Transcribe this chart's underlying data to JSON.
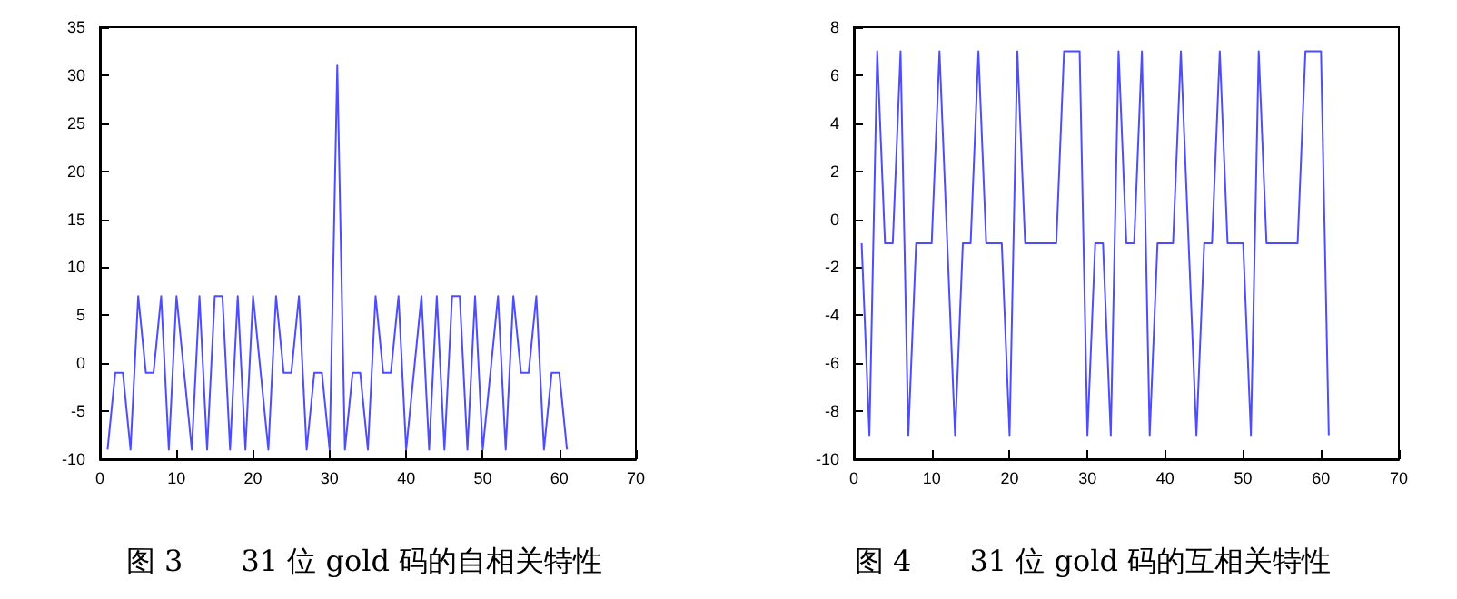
{
  "chart_data": [
    {
      "type": "line",
      "title": "图 3　　31 位 gold 码的自相关特性",
      "x": [
        1,
        2,
        3,
        4,
        5,
        6,
        7,
        8,
        9,
        10,
        11,
        12,
        13,
        14,
        15,
        16,
        17,
        18,
        19,
        20,
        21,
        22,
        23,
        24,
        25,
        26,
        27,
        28,
        29,
        30,
        31,
        32,
        33,
        34,
        35,
        36,
        37,
        38,
        39,
        40,
        41,
        42,
        43,
        44,
        45,
        46,
        47,
        48,
        49,
        50,
        51,
        52,
        53,
        54,
        55,
        56,
        57,
        58,
        59,
        60,
        61
      ],
      "series": [
        {
          "color": "#4d4dff",
          "values": [
            -9,
            -1,
            -1,
            -9,
            7,
            -1,
            -1,
            7,
            -9,
            7,
            -1,
            -9,
            7,
            -9,
            7,
            7,
            -9,
            7,
            -9,
            7,
            -1,
            -9,
            7,
            -1,
            -1,
            7,
            -9,
            -1,
            -1,
            -9,
            31,
            -9,
            -1,
            -1,
            -9,
            7,
            -1,
            -1,
            7,
            -9,
            -1,
            7,
            -9,
            7,
            -9,
            7,
            7,
            -9,
            7,
            -9,
            -1,
            7,
            -9,
            7,
            -1,
            -1,
            7,
            -9,
            -1,
            -1,
            -9
          ]
        }
      ],
      "xlim": [
        0,
        70
      ],
      "xticks": [
        0,
        10,
        20,
        30,
        40,
        50,
        60,
        70
      ],
      "ylim": [
        -10,
        35
      ],
      "yticks": [
        -10,
        -5,
        0,
        5,
        10,
        15,
        20,
        25,
        30,
        35
      ],
      "grid": false,
      "marker": "none",
      "line_style": "solid"
    },
    {
      "type": "line",
      "title": "图 4　　31 位 gold 码的互相关特性",
      "x": [
        1,
        2,
        3,
        4,
        5,
        6,
        7,
        8,
        9,
        10,
        11,
        12,
        13,
        14,
        15,
        16,
        17,
        18,
        19,
        20,
        21,
        22,
        23,
        24,
        25,
        26,
        27,
        28,
        29,
        30,
        31,
        32,
        33,
        34,
        35,
        36,
        37,
        38,
        39,
        40,
        41,
        42,
        43,
        44,
        45,
        46,
        47,
        48,
        49,
        50,
        51,
        52,
        53,
        54,
        55,
        56,
        57,
        58,
        59,
        60,
        61
      ],
      "series": [
        {
          "color": "#4d4dff",
          "values": [
            -1,
            -9,
            7,
            -1,
            -1,
            7,
            -9,
            -1,
            -1,
            -1,
            7,
            -1,
            -9,
            -1,
            -1,
            7,
            -1,
            -1,
            -1,
            -9,
            7,
            -1,
            -1,
            -1,
            -1,
            -1,
            7,
            7,
            7,
            -9,
            -1,
            -1,
            -9,
            7,
            -1,
            -1,
            7,
            -9,
            -1,
            -1,
            -1,
            7,
            -1,
            -9,
            -1,
            -1,
            7,
            -1,
            -1,
            -1,
            -9,
            7,
            -1,
            -1,
            -1,
            -1,
            -1,
            7,
            7,
            7,
            -9
          ]
        }
      ],
      "xlim": [
        0,
        70
      ],
      "xticks": [
        0,
        10,
        20,
        30,
        40,
        50,
        60,
        70
      ],
      "ylim": [
        -10,
        8
      ],
      "yticks": [
        -10,
        -8,
        -6,
        -4,
        -2,
        0,
        2,
        4,
        6,
        8
      ],
      "grid": false,
      "marker": "none",
      "line_style": "solid"
    }
  ]
}
